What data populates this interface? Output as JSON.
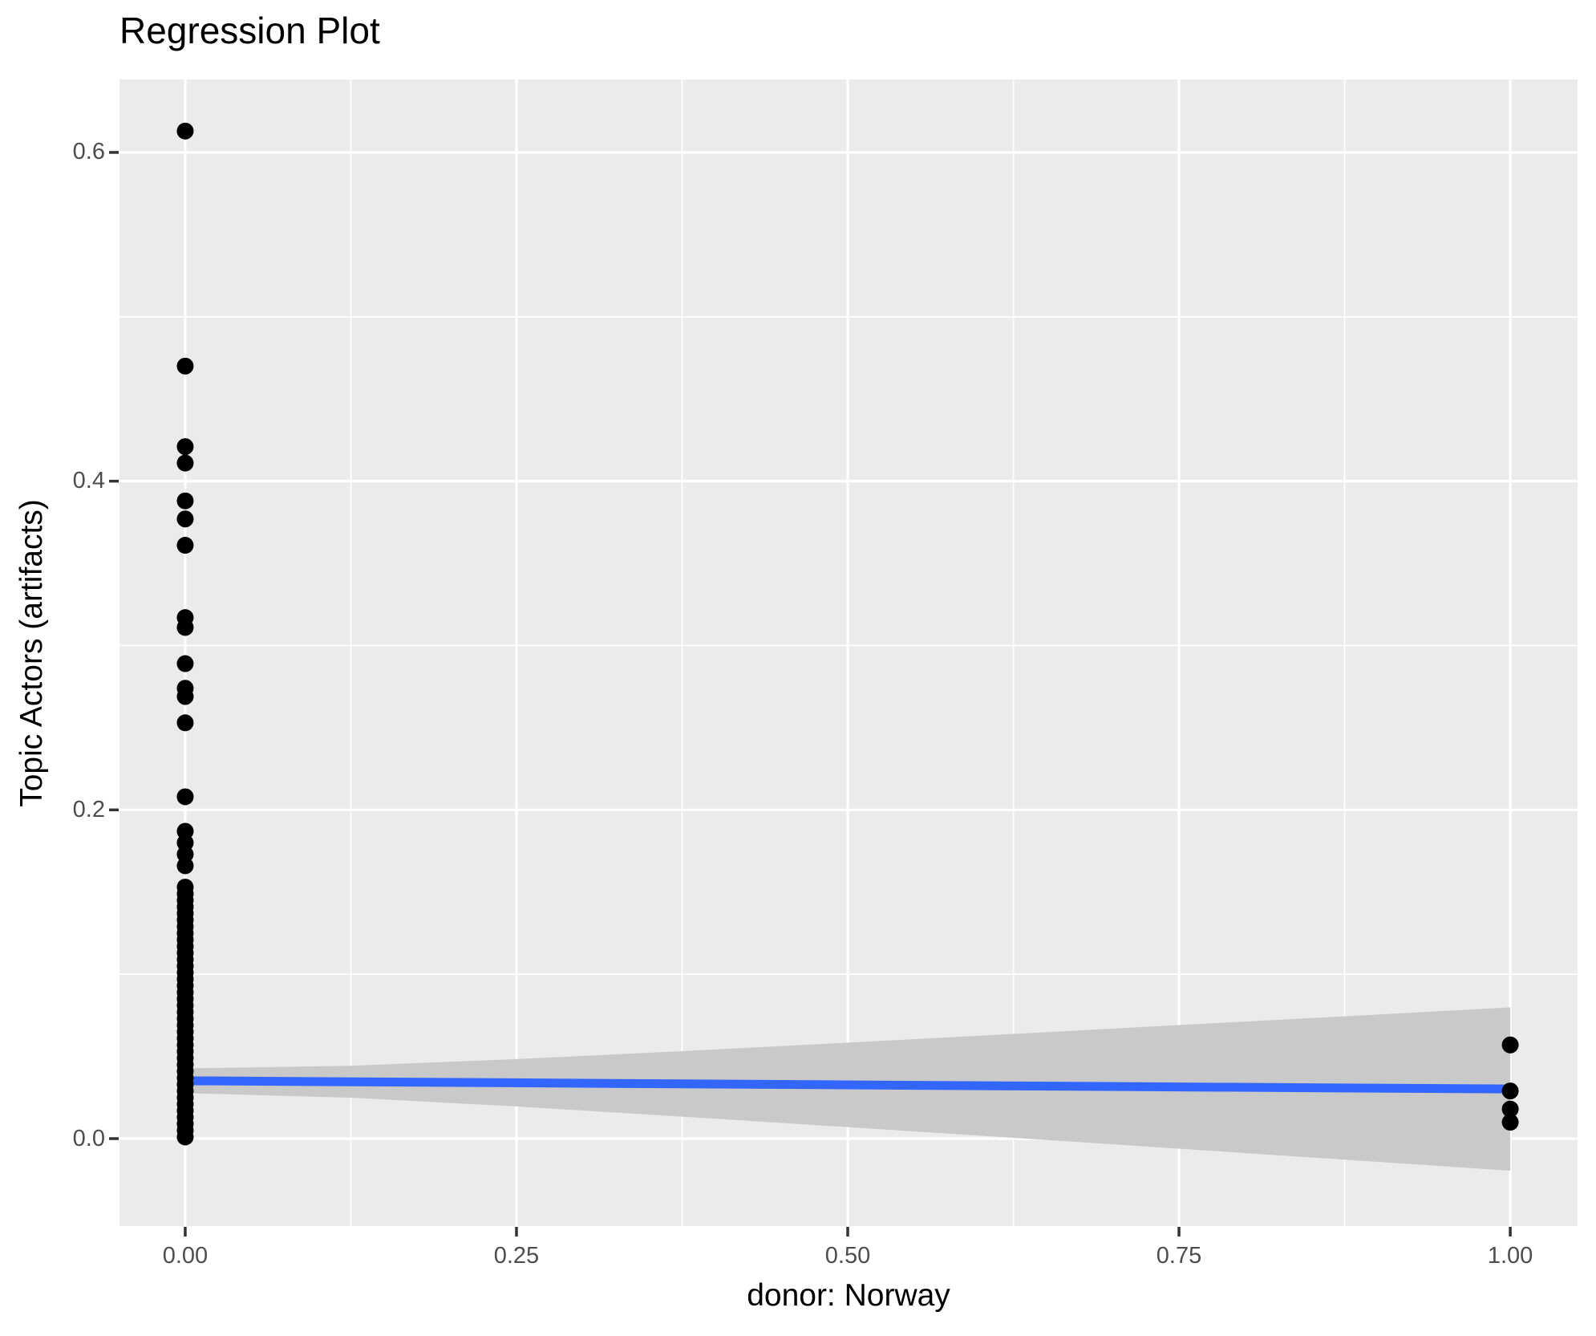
{
  "title": "Regression Plot",
  "chart_data": {
    "type": "scatter",
    "title": "Regression Plot",
    "xlabel": "donor: Norway",
    "ylabel": "Topic Actors (artifacts)",
    "xlim": [
      -0.0496,
      1.0508
    ],
    "ylim": [
      -0.0532,
      0.6444
    ],
    "grid": true,
    "legend_position": "none",
    "x_ticks": {
      "values": [
        0,
        0.25,
        0.5,
        0.75,
        1.0
      ],
      "labels": [
        "0.00",
        "0.25",
        "0.50",
        "0.75",
        "1.00"
      ]
    },
    "y_ticks": {
      "values": [
        0,
        0.2,
        0.4,
        0.6
      ],
      "labels": [
        "0.0",
        "0.2",
        "0.4",
        "0.6"
      ]
    },
    "x_minor": [
      0.125,
      0.375,
      0.625,
      0.875
    ],
    "y_minor": [
      0.1,
      0.3,
      0.5
    ],
    "series": [
      {
        "name": "observations",
        "marker": "circle",
        "points_x0_y": [
          0.001,
          0.005,
          0.009,
          0.013,
          0.017,
          0.021,
          0.025,
          0.029,
          0.033,
          0.037,
          0.041,
          0.045,
          0.049,
          0.053,
          0.057,
          0.061,
          0.065,
          0.069,
          0.073,
          0.077,
          0.081,
          0.085,
          0.089,
          0.093,
          0.097,
          0.101,
          0.105,
          0.109,
          0.113,
          0.117,
          0.121,
          0.125,
          0.129,
          0.133,
          0.137,
          0.141,
          0.145,
          0.149,
          0.153,
          0.166,
          0.173,
          0.18,
          0.187,
          0.208,
          0.253,
          0.269,
          0.274,
          0.289,
          0.311,
          0.317,
          0.361,
          0.377,
          0.388,
          0.411,
          0.421,
          0.47,
          0.613
        ],
        "points_x1_y": [
          0.01,
          0.018,
          0.029,
          0.057
        ]
      }
    ],
    "regression_line": {
      "x": [
        0,
        1
      ],
      "y": [
        0.0352,
        0.0302
      ]
    },
    "confidence_band": {
      "x": [
        0,
        0.125,
        0.25,
        0.375,
        0.5,
        0.625,
        0.75,
        0.875,
        1.0
      ],
      "upper": [
        0.0427,
        0.0443,
        0.0484,
        0.0532,
        0.0584,
        0.0637,
        0.0691,
        0.0744,
        0.0799
      ],
      "lower": [
        0.0277,
        0.0249,
        0.0196,
        0.0134,
        0.007,
        0.0005,
        -0.0061,
        -0.0128,
        -0.0195
      ]
    },
    "colors": {
      "panel_background": "#EBEBEB",
      "gridline": "#FFFFFF",
      "point": "#000000",
      "regression_line": "#3366FF",
      "confidence_band": "#C9C9C9",
      "tick_label": "#4D4D4D",
      "tick_mark": "#333333",
      "text": "#000000",
      "figure_background": "#FFFFFF"
    }
  }
}
